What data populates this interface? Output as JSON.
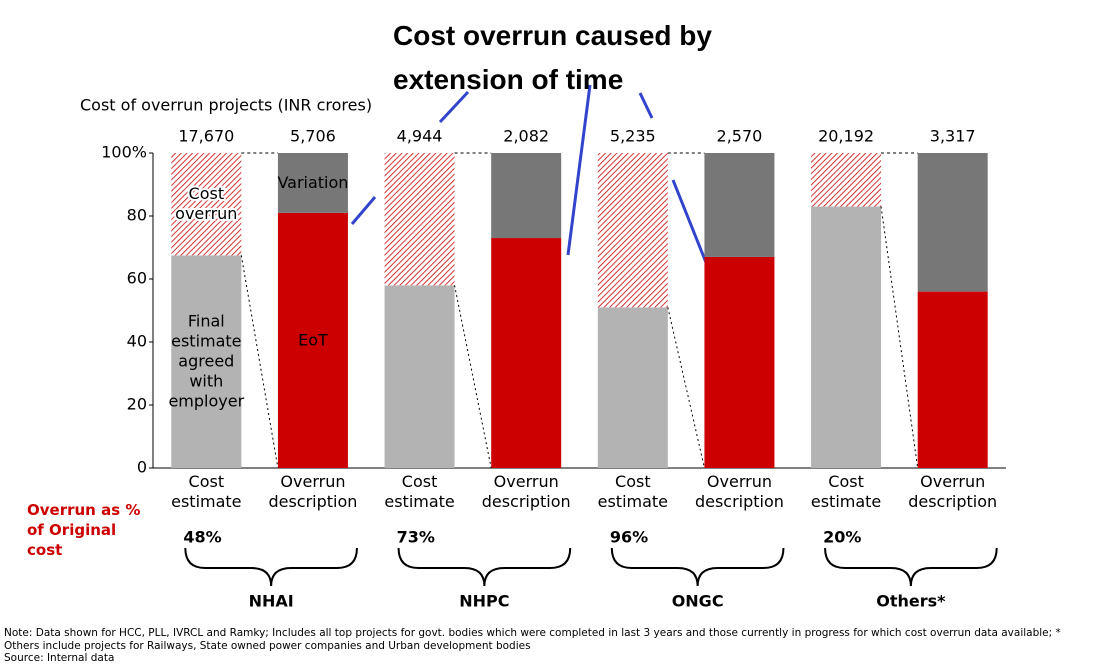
{
  "chart_data": {
    "type": "bar",
    "title": "Cost overrun caused by extension of time",
    "ylabel": "Cost of overrun projects (INR crores)",
    "categories": [
      "Cost estimate",
      "Overrun description",
      "Cost estimate",
      "Overrun description",
      "Cost estimate",
      "Overrun description",
      "Cost estimate",
      "Overrun description"
    ],
    "totals": [
      17670,
      5706,
      4944,
      2082,
      5235,
      2570,
      20192,
      3317
    ],
    "total_labels": [
      "17,670",
      "5,706",
      "4,944",
      "2,082",
      "5,235",
      "2,570",
      "20,192",
      "3,317"
    ],
    "series": [
      {
        "name": "Final estimate agreed with employer",
        "color": "#b3b3b3",
        "values": [
          67.5,
          null,
          58,
          null,
          51,
          null,
          83,
          null
        ]
      },
      {
        "name": "Cost overrun",
        "color": "#cc0000",
        "hatch": true,
        "values": [
          32.5,
          null,
          42,
          null,
          49,
          null,
          17,
          null
        ]
      },
      {
        "name": "EoT",
        "color": "#cc0000",
        "values": [
          null,
          81,
          null,
          73,
          null,
          67,
          null,
          56
        ]
      },
      {
        "name": "Variation",
        "color": "#777777",
        "values": [
          null,
          19,
          null,
          27,
          null,
          33,
          null,
          44
        ]
      }
    ],
    "ylim": [
      0,
      100
    ],
    "yticks": [
      {
        "value": 100,
        "label": "100%"
      },
      80,
      60,
      40,
      20,
      0
    ],
    "groups": [
      "NHAI",
      "NHPC",
      "ONGC",
      "Others*"
    ],
    "overrun_label": "Overrun as % of Original cost",
    "overrun_pct": [
      48,
      73,
      96,
      20
    ],
    "overrun_pct_labels": [
      "48%",
      "73%",
      "96%",
      "20%"
    ],
    "note": "Note: Data shown for HCC, PLL, IVRCL and Ramky; Includes all top projects for govt. bodies which were completed in last 3 years and those currently in progress for which cost overrun data available; * Others include projects for Railways, State owned power companies and Urban development bodies",
    "source": "Source: Internal data"
  }
}
